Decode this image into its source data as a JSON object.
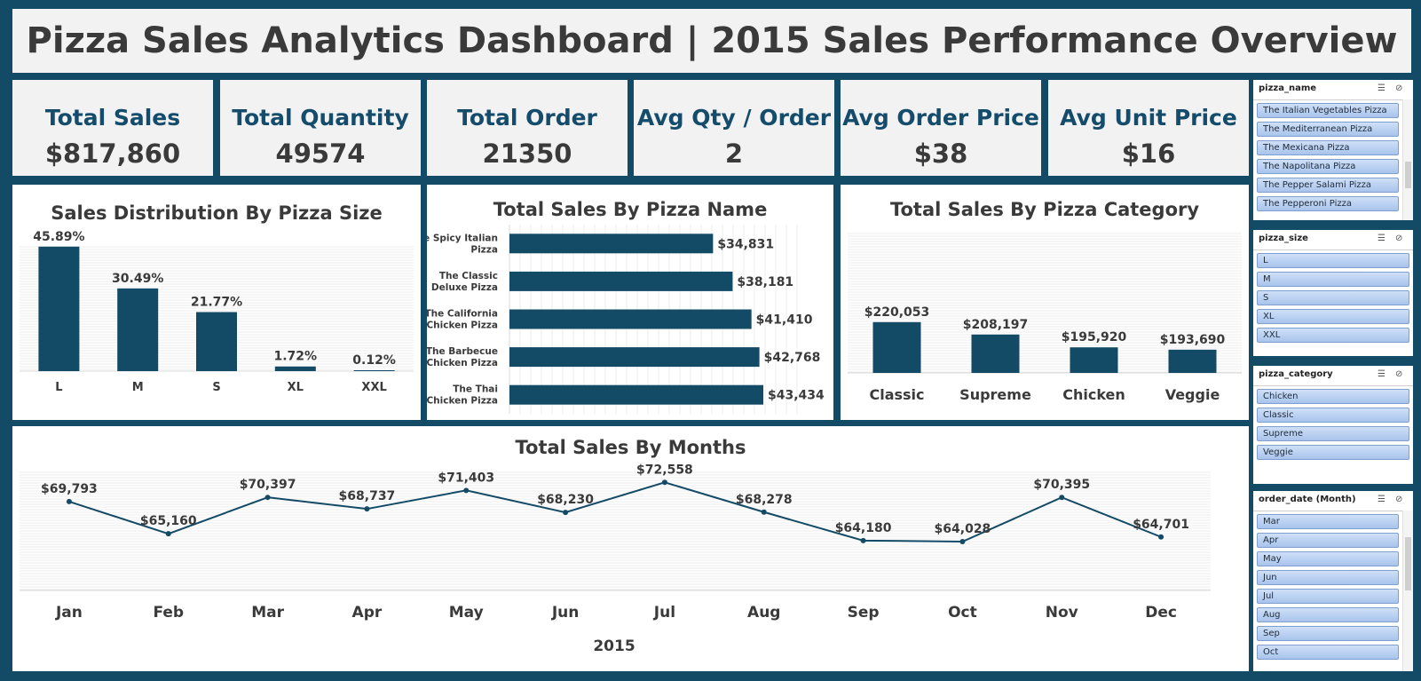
{
  "title": "Pizza Sales Analytics Dashboard | 2015 Sales Performance Overview",
  "kpis": [
    {
      "label": "Total Sales",
      "value": "$817,860"
    },
    {
      "label": "Total Quantity",
      "value": "49574"
    },
    {
      "label": "Total Order",
      "value": "21350"
    },
    {
      "label": "Avg Qty / Order",
      "value": "2"
    },
    {
      "label": "Avg Order Price",
      "value": "$38"
    },
    {
      "label": "Avg Unit Price",
      "value": "$16"
    }
  ],
  "colors": {
    "accent": "#134a66",
    "bar": "#134a66",
    "text": "#3a3a3a",
    "label": "#154c6c"
  },
  "chart_data": [
    {
      "type": "bar",
      "title": "Sales Distribution By Pizza Size",
      "categories": [
        "L",
        "M",
        "S",
        "XL",
        "XXL"
      ],
      "values": [
        45.89,
        30.49,
        21.77,
        1.72,
        0.12
      ],
      "value_labels": [
        "45.89%",
        "30.49%",
        "21.77%",
        "1.72%",
        "0.12%"
      ],
      "ylim": [
        0,
        50
      ],
      "xlabel": "",
      "ylabel": ""
    },
    {
      "type": "bar",
      "orientation": "horizontal",
      "title": "Total Sales By Pizza Name",
      "categories": [
        [
          "The Spicy Italian",
          "Pizza"
        ],
        [
          "The Classic",
          "Deluxe Pizza"
        ],
        [
          "The California",
          "Chicken Pizza"
        ],
        [
          "The Barbecue",
          "Chicken Pizza"
        ],
        [
          "The Thai",
          "Chicken Pizza"
        ]
      ],
      "values": [
        34831,
        38181,
        41410,
        42768,
        43434
      ],
      "value_labels": [
        "$34,831",
        "$38,181",
        "$41,410",
        "$42,768",
        "$43,434"
      ],
      "xlim": [
        0,
        50000
      ]
    },
    {
      "type": "bar",
      "title": "Total Sales By Pizza Category",
      "categories": [
        "Classic",
        "Supreme",
        "Chicken",
        "Veggie"
      ],
      "values": [
        220053,
        208197,
        195920,
        193690
      ],
      "value_labels": [
        "$220,053",
        "$208,197",
        "$195,920",
        "$193,690"
      ],
      "ylim": [
        100000,
        225000
      ]
    },
    {
      "type": "line",
      "title": "Total Sales By Months",
      "xlabel": "2015",
      "categories": [
        "Jan",
        "Feb",
        "Mar",
        "Apr",
        "May",
        "Jun",
        "Jul",
        "Aug",
        "Sep",
        "Oct",
        "Nov",
        "Dec"
      ],
      "values": [
        69793,
        65160,
        70397,
        68737,
        71403,
        68230,
        72558,
        68278,
        64180,
        64028,
        70395,
        64701
      ],
      "value_labels": [
        "$69,793",
        "$65,160",
        "$70,397",
        "$68,737",
        "$71,403",
        "$68,230",
        "$72,558",
        "$68,278",
        "$64,180",
        "$64,028",
        "$70,395",
        "$64,701"
      ],
      "ylim": [
        57000,
        74000
      ]
    }
  ],
  "slicers": [
    {
      "title": "pizza_name",
      "items": [
        "The Italian Vegetables Pizza",
        "The Mediterranean Pizza",
        "The Mexicana Pizza",
        "The Napolitana Pizza",
        "The Pepper Salami Pizza",
        "The Pepperoni Pizza"
      ]
    },
    {
      "title": "pizza_size",
      "items": [
        "L",
        "M",
        "S",
        "XL",
        "XXL"
      ]
    },
    {
      "title": "pizza_category",
      "items": [
        "Chicken",
        "Classic",
        "Supreme",
        "Veggie"
      ]
    },
    {
      "title": "order_date (Month)",
      "items": [
        "Mar",
        "Apr",
        "May",
        "Jun",
        "Jul",
        "Aug",
        "Sep",
        "Oct"
      ]
    }
  ]
}
